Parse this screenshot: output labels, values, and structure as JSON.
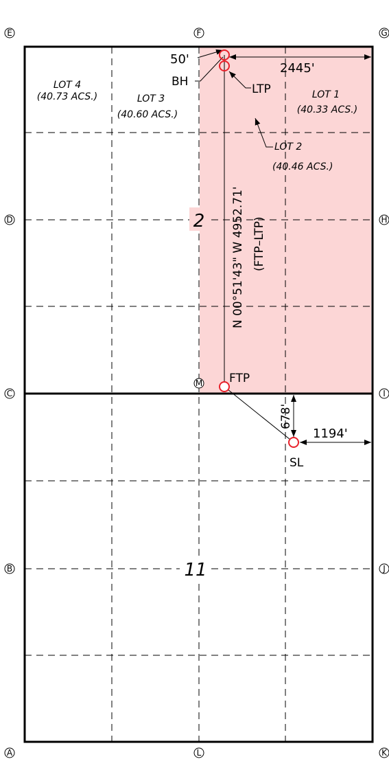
{
  "colors": {
    "highlight": "#fcd6d6",
    "marker": "#e8202a",
    "line": "#000000"
  },
  "corners": {
    "A": "A",
    "B": "B",
    "C": "C",
    "D": "D",
    "E": "E",
    "F": "F",
    "G": "G",
    "H": "H",
    "I": "I",
    "J": "J",
    "K": "K",
    "L": "L",
    "M": "M"
  },
  "sections": {
    "upper": "2",
    "lower": "11"
  },
  "lots": {
    "lot1": {
      "name": "LOT 1",
      "acres": "(40.33 ACS.)"
    },
    "lot2": {
      "name": "LOT 2",
      "acres": "(40.46 ACS.)"
    },
    "lot3": {
      "name": "LOT 3",
      "acres": "(40.60 ACS.)"
    },
    "lot4": {
      "name": "LOT 4",
      "acres": "(40.73 ACS.)"
    }
  },
  "points": {
    "bh": "BH",
    "ltp": "LTP",
    "ftp": "FTP",
    "sl": "SL"
  },
  "dimensions": {
    "top_offset": "50'",
    "east_top": "2445'",
    "south_sl": "678'",
    "east_sl": "1194'"
  },
  "bearing": {
    "line1": "N 00°51'43\" W 4952.71'",
    "line2": "(FTP–LTP)"
  }
}
